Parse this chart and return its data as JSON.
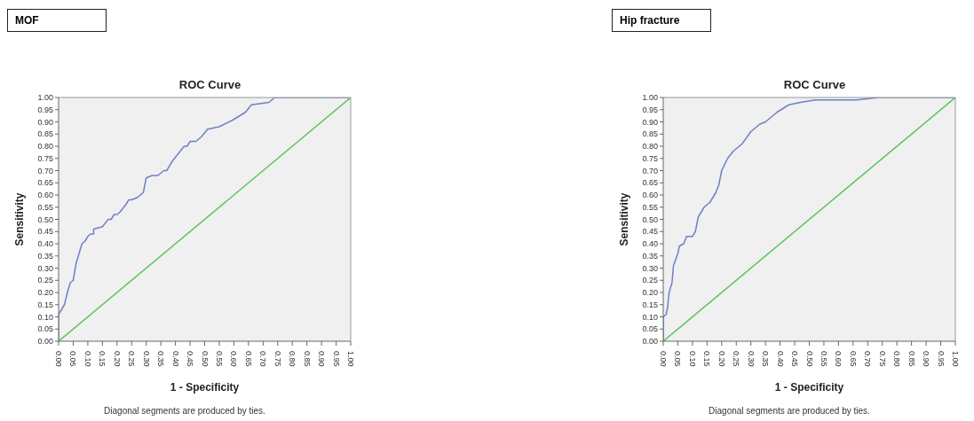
{
  "chart_data": [
    {
      "type": "line",
      "title": "ROC Curve",
      "xlabel": "1 - Specificity",
      "ylabel": "Sensitivity",
      "annotations": [
        "MOF",
        "Diagonal segments are produced by ties."
      ],
      "xlim": [
        0,
        1
      ],
      "ylim": [
        0,
        1
      ],
      "xticks": [
        {
          "value": 0,
          "label": "0.00"
        },
        {
          "value": 0.05,
          "label": "0.05"
        },
        {
          "value": 0.1,
          "label": "0.10"
        },
        {
          "value": 0.15,
          "label": "0.15"
        },
        {
          "value": 0.2,
          "label": "0.20"
        },
        {
          "value": 0.25,
          "label": "0.25"
        },
        {
          "value": 0.3,
          "label": "0.30"
        },
        {
          "value": 0.35,
          "label": "0.35"
        },
        {
          "value": 0.4,
          "label": "0.40"
        },
        {
          "value": 0.45,
          "label": "0.45"
        },
        {
          "value": 0.5,
          "label": "0.50"
        },
        {
          "value": 0.55,
          "label": "0.55"
        },
        {
          "value": 0.6,
          "label": "0.60"
        },
        {
          "value": 0.65,
          "label": "0.65"
        },
        {
          "value": 0.7,
          "label": "0.70"
        },
        {
          "value": 0.75,
          "label": "0.75"
        },
        {
          "value": 0.8,
          "label": "0.80"
        },
        {
          "value": 0.85,
          "label": "0.85"
        },
        {
          "value": 0.9,
          "label": "0.90"
        },
        {
          "value": 0.95,
          "label": "0.95"
        },
        {
          "value": 1,
          "label": "1.00"
        }
      ],
      "yticks": [
        {
          "value": 0,
          "label": "0.00"
        },
        {
          "value": 0.05,
          "label": "0.05"
        },
        {
          "value": 0.1,
          "label": "0.10"
        },
        {
          "value": 0.15,
          "label": "0.15"
        },
        {
          "value": 0.2,
          "label": "0.20"
        },
        {
          "value": 0.25,
          "label": "0.25"
        },
        {
          "value": 0.3,
          "label": "0.30"
        },
        {
          "value": 0.35,
          "label": "0.35"
        },
        {
          "value": 0.4,
          "label": "0.40"
        },
        {
          "value": 0.45,
          "label": "0.45"
        },
        {
          "value": 0.5,
          "label": "0.50"
        },
        {
          "value": 0.55,
          "label": "0.55"
        },
        {
          "value": 0.6,
          "label": "0.60"
        },
        {
          "value": 0.65,
          "label": "0.65"
        },
        {
          "value": 0.7,
          "label": "0.70"
        },
        {
          "value": 0.75,
          "label": "0.75"
        },
        {
          "value": 0.8,
          "label": "0.80"
        },
        {
          "value": 0.85,
          "label": "0.85"
        },
        {
          "value": 0.9,
          "label": "0.90"
        },
        {
          "value": 0.95,
          "label": "0.95"
        },
        {
          "value": 1,
          "label": "1.00"
        }
      ],
      "grid": false,
      "marker": "none",
      "line_style": "solid",
      "series": [
        {
          "color": "#6f80c4",
          "x": [
            0,
            0,
            0.01,
            0.02,
            0.03,
            0.04,
            0.05,
            0.06,
            0.08,
            0.09,
            0.1,
            0.11,
            0.12,
            0.12,
            0.15,
            0.17,
            0.18,
            0.19,
            0.2,
            0.21,
            0.23,
            0.24,
            0.25,
            0.27,
            0.29,
            0.3,
            0.32,
            0.34,
            0.36,
            0.37,
            0.39,
            0.41,
            0.43,
            0.44,
            0.45,
            0.47,
            0.49,
            0.51,
            0.55,
            0.6,
            0.64,
            0.66,
            0.72,
            0.74,
            0.97,
            1
          ],
          "values": [
            0,
            0.11,
            0.13,
            0.15,
            0.2,
            0.24,
            0.25,
            0.32,
            0.4,
            0.41,
            0.43,
            0.44,
            0.44,
            0.46,
            0.47,
            0.5,
            0.5,
            0.52,
            0.52,
            0.53,
            0.56,
            0.58,
            0.58,
            0.59,
            0.61,
            0.67,
            0.68,
            0.68,
            0.7,
            0.7,
            0.74,
            0.77,
            0.8,
            0.8,
            0.82,
            0.82,
            0.84,
            0.87,
            0.88,
            0.91,
            0.94,
            0.97,
            0.98,
            1,
            1,
            1
          ]
        },
        {
          "color": "#5cc45c",
          "x": [
            0,
            1
          ],
          "values": [
            0,
            1
          ]
        }
      ]
    },
    {
      "type": "line",
      "title": "ROC Curve",
      "xlabel": "1 - Specificity",
      "ylabel": "Sensitivity",
      "annotations": [
        "Hip fracture",
        "Diagonal segments are produced by ties."
      ],
      "xlim": [
        0,
        1
      ],
      "ylim": [
        0,
        1
      ],
      "xticks": [
        {
          "value": 0,
          "label": "0.00"
        },
        {
          "value": 0.05,
          "label": "0.05"
        },
        {
          "value": 0.1,
          "label": "0.10"
        },
        {
          "value": 0.15,
          "label": "0.15"
        },
        {
          "value": 0.2,
          "label": "0.20"
        },
        {
          "value": 0.25,
          "label": "0.25"
        },
        {
          "value": 0.3,
          "label": "0.30"
        },
        {
          "value": 0.35,
          "label": "0.35"
        },
        {
          "value": 0.4,
          "label": "0.40"
        },
        {
          "value": 0.45,
          "label": "0.45"
        },
        {
          "value": 0.5,
          "label": "0.50"
        },
        {
          "value": 0.55,
          "label": "0.55"
        },
        {
          "value": 0.6,
          "label": "0.60"
        },
        {
          "value": 0.65,
          "label": "0.65"
        },
        {
          "value": 0.7,
          "label": "0.70"
        },
        {
          "value": 0.75,
          "label": "0.75"
        },
        {
          "value": 0.8,
          "label": "0.80"
        },
        {
          "value": 0.85,
          "label": "0.85"
        },
        {
          "value": 0.9,
          "label": "0.90"
        },
        {
          "value": 0.95,
          "label": "0.95"
        },
        {
          "value": 1,
          "label": "1.00"
        }
      ],
      "yticks": [
        {
          "value": 0,
          "label": "0.00"
        },
        {
          "value": 0.05,
          "label": "0.05"
        },
        {
          "value": 0.1,
          "label": "0.10"
        },
        {
          "value": 0.15,
          "label": "0.15"
        },
        {
          "value": 0.2,
          "label": "0.20"
        },
        {
          "value": 0.25,
          "label": "0.25"
        },
        {
          "value": 0.3,
          "label": "0.30"
        },
        {
          "value": 0.35,
          "label": "0.35"
        },
        {
          "value": 0.4,
          "label": "0.40"
        },
        {
          "value": 0.45,
          "label": "0.45"
        },
        {
          "value": 0.5,
          "label": "0.50"
        },
        {
          "value": 0.55,
          "label": "0.55"
        },
        {
          "value": 0.6,
          "label": "0.60"
        },
        {
          "value": 0.65,
          "label": "0.65"
        },
        {
          "value": 0.7,
          "label": "0.70"
        },
        {
          "value": 0.75,
          "label": "0.75"
        },
        {
          "value": 0.8,
          "label": "0.80"
        },
        {
          "value": 0.85,
          "label": "0.85"
        },
        {
          "value": 0.9,
          "label": "0.90"
        },
        {
          "value": 0.95,
          "label": "0.95"
        },
        {
          "value": 1,
          "label": "1.00"
        }
      ],
      "grid": false,
      "marker": "none",
      "line_style": "solid",
      "series": [
        {
          "color": "#6f80c4",
          "x": [
            0,
            0,
            0.01,
            0.015,
            0.02,
            0.03,
            0.035,
            0.05,
            0.055,
            0.07,
            0.08,
            0.1,
            0.11,
            0.12,
            0.14,
            0.16,
            0.18,
            0.19,
            0.2,
            0.22,
            0.24,
            0.27,
            0.3,
            0.33,
            0.35,
            0.39,
            0.43,
            0.47,
            0.52,
            0.66,
            0.74,
            1
          ],
          "values": [
            0,
            0.1,
            0.11,
            0.14,
            0.2,
            0.24,
            0.31,
            0.36,
            0.39,
            0.4,
            0.43,
            0.43,
            0.45,
            0.51,
            0.55,
            0.57,
            0.61,
            0.64,
            0.7,
            0.75,
            0.78,
            0.81,
            0.86,
            0.89,
            0.9,
            0.94,
            0.97,
            0.98,
            0.99,
            0.99,
            1,
            1
          ]
        },
        {
          "color": "#5cc45c",
          "x": [
            0,
            1
          ],
          "values": [
            0,
            1
          ]
        }
      ]
    }
  ]
}
